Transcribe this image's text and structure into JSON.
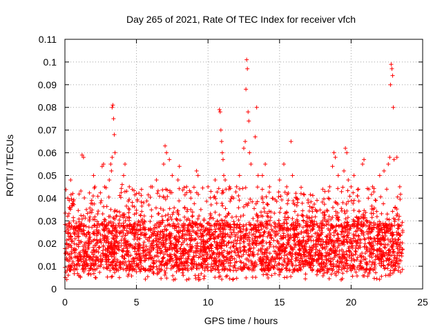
{
  "chart_data": {
    "type": "scatter",
    "title": "Day 265 of 2021, Rate Of TEC Index for receiver vfch",
    "xlabel": "GPS time / hours",
    "ylabel": "ROTI / TECUs",
    "xlim": [
      0,
      25
    ],
    "ylim": [
      0,
      0.11
    ],
    "xticks": [
      "0",
      "5",
      "10",
      "15",
      "20",
      "25"
    ],
    "yticks": [
      "0",
      "0.01",
      "0.02",
      "0.03",
      "0.04",
      "0.05",
      "0.06",
      "0.07",
      "0.08",
      "0.09",
      "0.1",
      "0.11"
    ],
    "grid": true,
    "marker": "+",
    "color": "#ff0000",
    "x_data_range": [
      0,
      23.6
    ],
    "typical_band": [
      0.008,
      0.028
    ],
    "series": [
      {
        "points": [
          [
            0.1,
            0.013
          ],
          [
            0.2,
            0.04
          ],
          [
            0.3,
            0.039
          ],
          [
            0.4,
            0.048
          ],
          [
            0.6,
            0.03
          ],
          [
            1.2,
            0.059
          ],
          [
            1.3,
            0.058
          ],
          [
            1.5,
            0.035
          ],
          [
            2.0,
            0.05
          ],
          [
            2.1,
            0.045
          ],
          [
            2.5,
            0.038
          ],
          [
            2.6,
            0.054
          ],
          [
            2.7,
            0.055
          ],
          [
            3.1,
            0.048
          ],
          [
            3.2,
            0.055
          ],
          [
            3.3,
            0.08
          ],
          [
            3.35,
            0.081
          ],
          [
            3.4,
            0.075
          ],
          [
            3.45,
            0.068
          ],
          [
            3.5,
            0.06
          ],
          [
            3.3,
            0.058
          ],
          [
            3.25,
            0.052
          ],
          [
            4.0,
            0.046
          ],
          [
            4.1,
            0.05
          ],
          [
            4.2,
            0.055
          ],
          [
            4.5,
            0.045
          ],
          [
            5.0,
            0.042
          ],
          [
            5.5,
            0.038
          ],
          [
            6.0,
            0.045
          ],
          [
            6.4,
            0.048
          ],
          [
            6.9,
            0.055
          ],
          [
            7.0,
            0.063
          ],
          [
            7.1,
            0.06
          ],
          [
            7.3,
            0.057
          ],
          [
            7.5,
            0.05
          ],
          [
            7.9,
            0.048
          ],
          [
            8.0,
            0.054
          ],
          [
            8.5,
            0.045
          ],
          [
            8.8,
            0.04
          ],
          [
            9.2,
            0.052
          ],
          [
            9.3,
            0.05
          ],
          [
            9.5,
            0.035
          ],
          [
            10.0,
            0.045
          ],
          [
            10.2,
            0.043
          ],
          [
            10.5,
            0.048
          ],
          [
            10.8,
            0.079
          ],
          [
            10.85,
            0.078
          ],
          [
            10.9,
            0.07
          ],
          [
            10.95,
            0.065
          ],
          [
            11.0,
            0.06
          ],
          [
            11.05,
            0.057
          ],
          [
            11.1,
            0.05
          ],
          [
            11.2,
            0.048
          ],
          [
            11.5,
            0.045
          ],
          [
            12.0,
            0.045
          ],
          [
            12.2,
            0.05
          ],
          [
            12.5,
            0.062
          ],
          [
            12.6,
            0.065
          ],
          [
            12.65,
            0.088
          ],
          [
            12.7,
            0.101
          ],
          [
            12.75,
            0.097
          ],
          [
            12.8,
            0.078
          ],
          [
            12.85,
            0.074
          ],
          [
            12.9,
            0.06
          ],
          [
            13.0,
            0.055
          ],
          [
            13.3,
            0.067
          ],
          [
            13.4,
            0.08
          ],
          [
            13.5,
            0.05
          ],
          [
            13.8,
            0.05
          ],
          [
            14.0,
            0.055
          ],
          [
            14.3,
            0.045
          ],
          [
            14.5,
            0.04
          ],
          [
            15.0,
            0.048
          ],
          [
            15.3,
            0.055
          ],
          [
            15.5,
            0.045
          ],
          [
            15.8,
            0.065
          ],
          [
            15.9,
            0.05
          ],
          [
            16.2,
            0.04
          ],
          [
            16.5,
            0.042
          ],
          [
            17.0,
            0.038
          ],
          [
            17.5,
            0.035
          ],
          [
            18.0,
            0.03
          ],
          [
            18.4,
            0.04
          ],
          [
            18.5,
            0.045
          ],
          [
            18.7,
            0.054
          ],
          [
            18.8,
            0.06
          ],
          [
            18.9,
            0.058
          ],
          [
            19.1,
            0.05
          ],
          [
            19.5,
            0.052
          ],
          [
            19.6,
            0.062
          ],
          [
            19.7,
            0.06
          ],
          [
            19.8,
            0.048
          ],
          [
            20.0,
            0.045
          ],
          [
            20.2,
            0.05
          ],
          [
            20.5,
            0.044
          ],
          [
            20.8,
            0.055
          ],
          [
            20.9,
            0.057
          ],
          [
            21.2,
            0.04
          ],
          [
            21.5,
            0.045
          ],
          [
            22.0,
            0.05
          ],
          [
            22.3,
            0.052
          ],
          [
            22.6,
            0.055
          ],
          [
            22.7,
            0.058
          ],
          [
            22.75,
            0.09
          ],
          [
            22.8,
            0.099
          ],
          [
            22.85,
            0.097
          ],
          [
            22.9,
            0.094
          ],
          [
            22.95,
            0.08
          ],
          [
            23.0,
            0.057
          ],
          [
            23.2,
            0.058
          ],
          [
            23.4,
            0.045
          ],
          [
            23.5,
            0.028
          ],
          [
            23.6,
            0.025
          ]
        ]
      }
    ]
  }
}
